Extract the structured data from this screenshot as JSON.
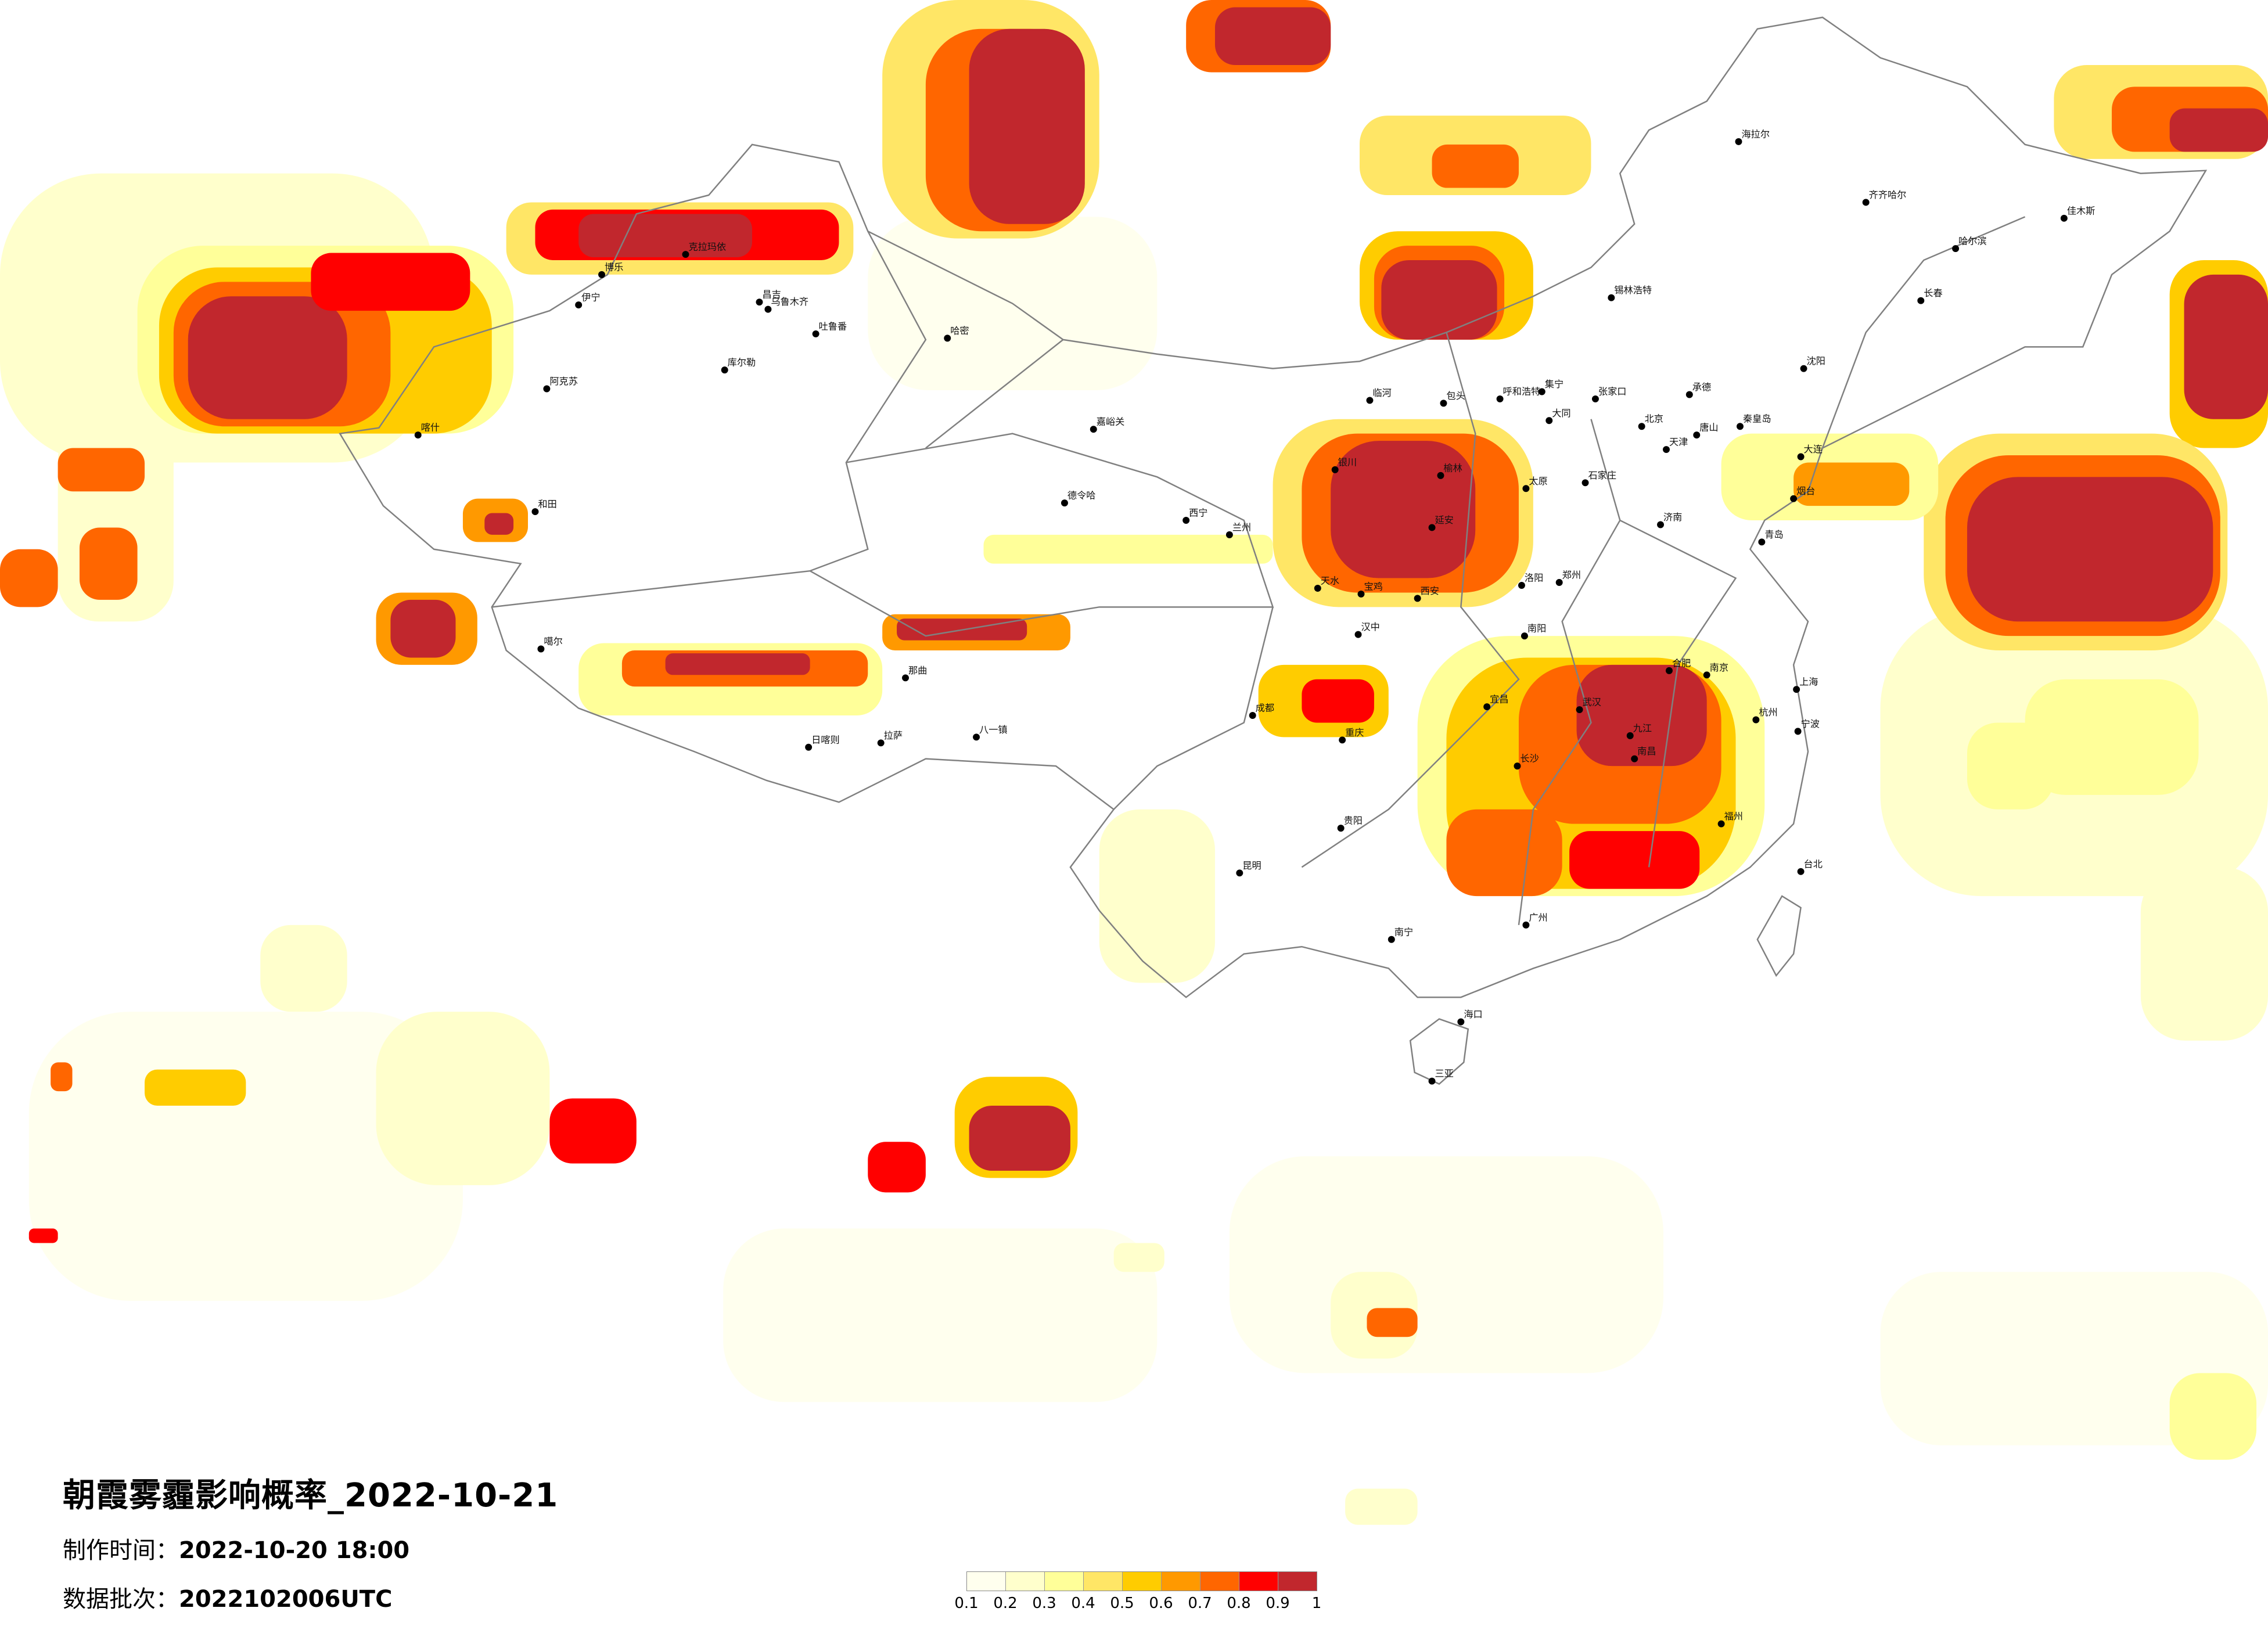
{
  "title": "朝霞雾霾影响概率_2022-10-21",
  "production_time": {
    "label": "制作时间：",
    "value": "2022-10-20 18:00"
  },
  "data_batch": {
    "label": "数据批次：",
    "value": "2022102006UTC"
  },
  "legend": {
    "ticks": [
      "0.1",
      "0.2",
      "0.3",
      "0.4",
      "0.5",
      "0.6",
      "0.7",
      "0.8",
      "0.9",
      "1"
    ],
    "colors": [
      "#FFFFEE",
      "#FFFFCC",
      "#FFFF99",
      "#FFE666",
      "#FFCC00",
      "#FF9900",
      "#FF6600",
      "#FF0000",
      "#C1272D"
    ]
  },
  "map": {
    "boundary_color": "#808080",
    "city_marker_color": "#000000",
    "cities": [
      "博乐",
      "克拉玛依",
      "伊宁",
      "昌吉",
      "乌鲁木齐",
      "吐鲁番",
      "哈密",
      "库尔勒",
      "阿克苏",
      "和田",
      "嘉峪关",
      "德令哈",
      "喀什",
      "拉萨",
      "日喀则",
      "八一镇",
      "噶尔",
      "那曲",
      "临河",
      "包头",
      "呼和浩特",
      "集宁",
      "张家口",
      "承德",
      "北京",
      "天津",
      "唐山",
      "秦皇岛",
      "石家庄",
      "太原",
      "济南",
      "青岛",
      "郑州",
      "西安",
      "延安",
      "榆林",
      "银川",
      "大同",
      "合肥",
      "南京",
      "上海",
      "杭州",
      "武汉",
      "宁波",
      "大连",
      "烟台",
      "洛阳",
      "南阳",
      "宜昌",
      "重庆",
      "汉中",
      "天水",
      "宝鸡",
      "九江",
      "成都",
      "昆明",
      "贵阳",
      "南宁",
      "广州",
      "长沙",
      "南昌",
      "福州",
      "海口",
      "三亚",
      "台北",
      "哈尔滨",
      "长春",
      "沈阳",
      "齐齐哈尔",
      "佳木斯",
      "海拉尔",
      "锡林浩特",
      "兰州",
      "西宁"
    ]
  }
}
